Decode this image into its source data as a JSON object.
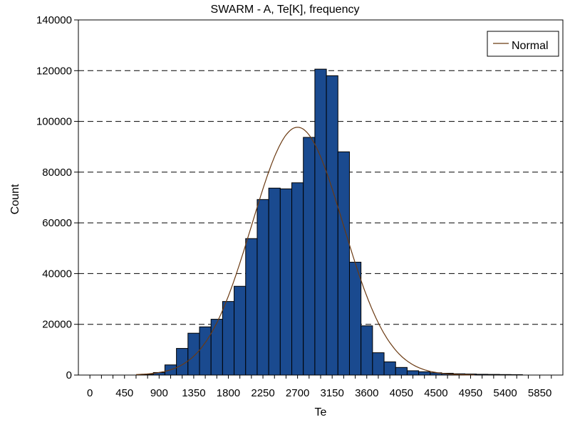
{
  "chart_data": {
    "type": "bar",
    "title": "SWARM - A, Te[K], frequency",
    "xlabel": "Te",
    "ylabel": "Count",
    "xlim": [
      -150,
      6150
    ],
    "ylim": [
      0,
      140000
    ],
    "x_ticks": [
      "0",
      "450",
      "900",
      "1350",
      "1800",
      "2250",
      "2700",
      "3150",
      "3600",
      "4050",
      "4500",
      "4950",
      "5400",
      "5850"
    ],
    "y_ticks": [
      "0",
      "20000",
      "40000",
      "60000",
      "80000",
      "100000",
      "120000",
      "140000"
    ],
    "bin_width": 150,
    "bin_centers": [
      750,
      900,
      1050,
      1200,
      1350,
      1500,
      1650,
      1800,
      1950,
      2100,
      2250,
      2400,
      2550,
      2700,
      2850,
      3000,
      3150,
      3300,
      3450,
      3600,
      3750,
      3900,
      4050,
      4200,
      4350,
      4500,
      4650,
      4800,
      4950,
      5100,
      5250,
      5400,
      5550
    ],
    "values": [
      300,
      1000,
      4000,
      10500,
      16500,
      19000,
      22000,
      29000,
      35000,
      53800,
      69200,
      73700,
      73400,
      75800,
      93700,
      120600,
      118000,
      88000,
      44500,
      19400,
      8800,
      5200,
      3000,
      1700,
      1300,
      900,
      700,
      500,
      400,
      300,
      250,
      200,
      150
    ],
    "series": [
      {
        "name": "Normal",
        "type": "line",
        "mean": 2700,
        "sd": 595,
        "peak": 97700,
        "color": "#6b3a12"
      }
    ],
    "bar_color": "#1a4a8f",
    "grid": "y-dashed",
    "legend_position": "top-right"
  }
}
